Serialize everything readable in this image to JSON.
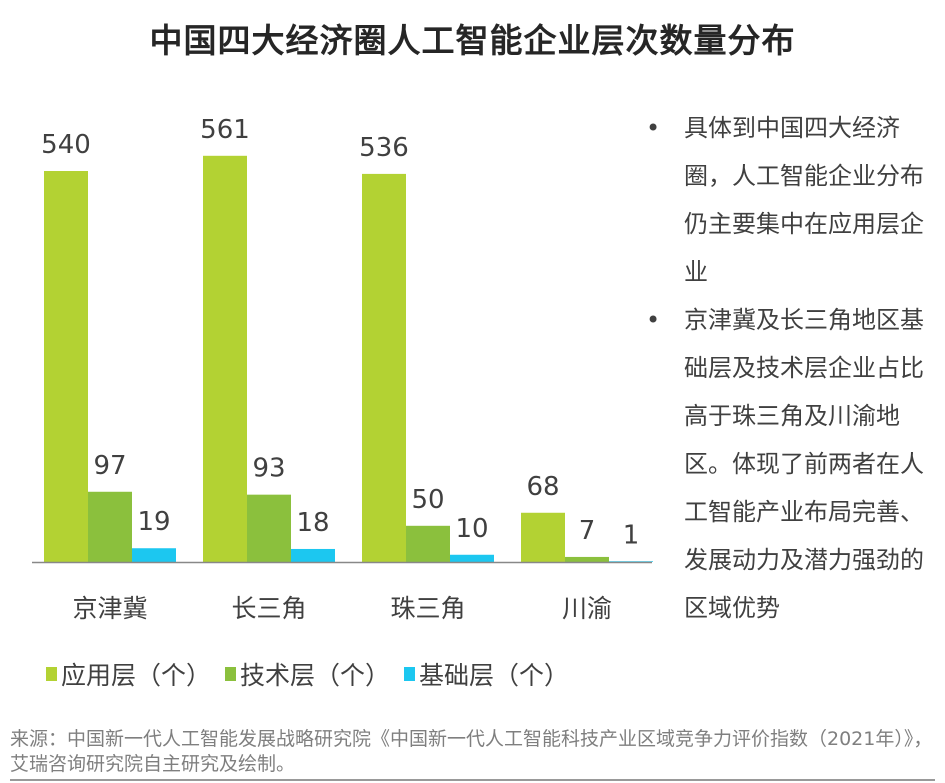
{
  "title": "中国四大经济圈人工智能企业层次数量分布",
  "chart_data": {
    "type": "bar",
    "title": "中国四大经济圈人工智能企业层次数量分布",
    "categories": [
      "京津冀",
      "长三角",
      "珠三角",
      "川渝"
    ],
    "series": [
      {
        "name": "应用层（个）",
        "values": [
          540,
          561,
          536,
          68
        ],
        "color": "#B3D233"
      },
      {
        "name": "技术层（个）",
        "values": [
          97,
          93,
          50,
          7
        ],
        "color": "#8BC03D"
      },
      {
        "name": "基础层（个）",
        "values": [
          19,
          18,
          10,
          1
        ],
        "color": "#1CC7F0"
      }
    ],
    "ylim": [
      0,
      600
    ],
    "grid": false,
    "legend": "bottom",
    "data_labels": true
  },
  "notes": [
    "具体到中国四大经济圈，人工智能企业分布仍主要集中在应用层企业",
    "京津冀及长三角地区基础层及技术层企业占比高于珠三角及川渝地区。体现了前两者在人工智能产业布局完善、发展动力及潜力强劲的区域优势"
  ],
  "bullet": "•",
  "source": "来源：中国新一代人工智能发展战略研究院《中国新一代人工智能科技产业区域竞争力评价指数（2021年）》，艾瑞咨询研究院自主研究及绘制。"
}
